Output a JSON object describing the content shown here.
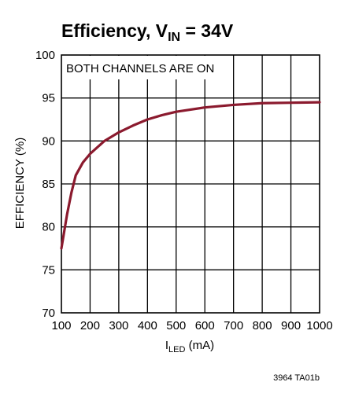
{
  "chart_data": {
    "type": "line",
    "title": {
      "prefix": "Efficiency, V",
      "subscript": "IN",
      "suffix": " = 34V"
    },
    "annotation": "BOTH CHANNELS ARE ON",
    "xlabel": {
      "prefix": "I",
      "subscript": "LED",
      "suffix": " (mA)"
    },
    "ylabel": "EFFICIENCY (%)",
    "xlim": [
      100,
      1000
    ],
    "ylim": [
      70,
      100
    ],
    "x_ticks": [
      100,
      200,
      300,
      400,
      500,
      600,
      700,
      800,
      900,
      1000
    ],
    "y_ticks": [
      70,
      75,
      80,
      85,
      90,
      95,
      100
    ],
    "grid": true,
    "series": [
      {
        "color": "#8b1a2e",
        "x": [
          100,
          110,
          120,
          135,
          150,
          175,
          200,
          250,
          300,
          350,
          400,
          450,
          500,
          600,
          700,
          800,
          900,
          1000
        ],
        "y": [
          77.5,
          79.5,
          81.5,
          84.0,
          86.0,
          87.5,
          88.5,
          90.0,
          91.0,
          91.8,
          92.5,
          93.0,
          93.4,
          93.9,
          94.2,
          94.4,
          94.45,
          94.5
        ]
      }
    ]
  },
  "figure_code": "3964 TA01b"
}
